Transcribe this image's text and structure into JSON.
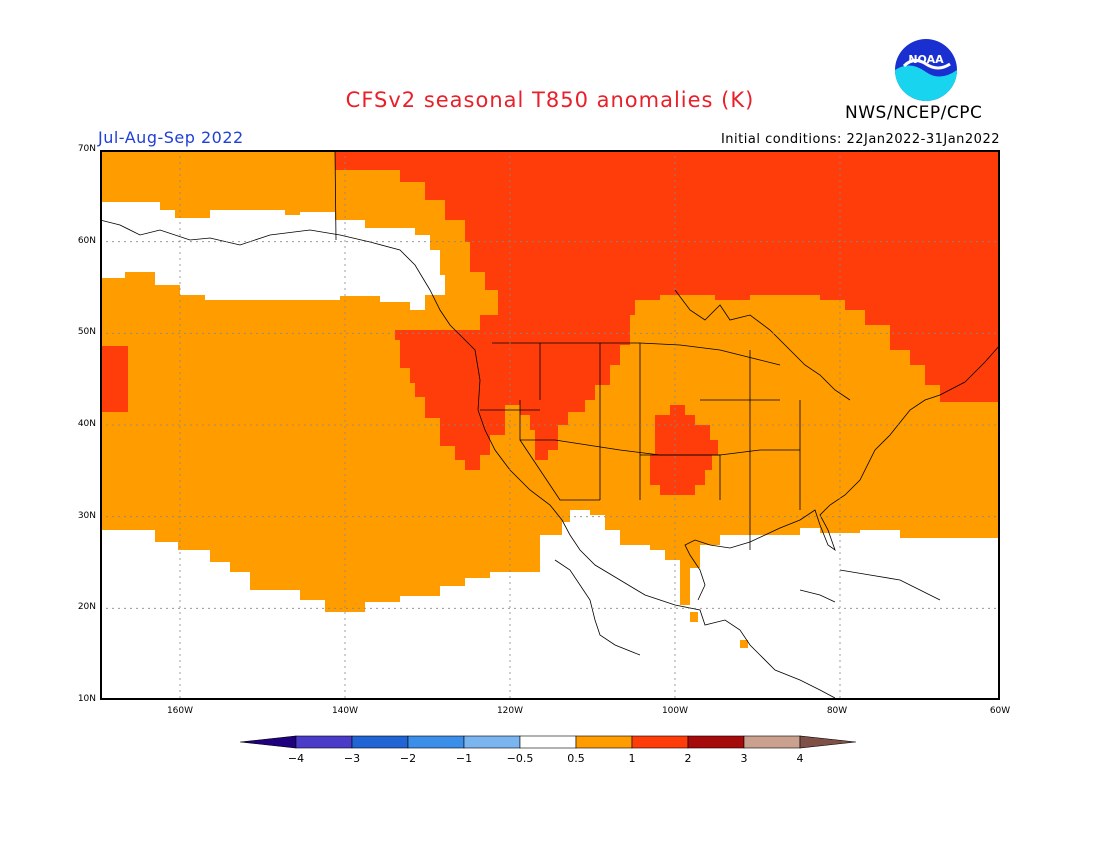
{
  "title": "CFSv2 seasonal T850 anomalies (K)",
  "season": "Jul-Aug-Sep 2022",
  "initial_conditions": "Initial conditions: 22Jan2022-31Jan2022",
  "agency": "NWS/NCEP/CPC",
  "logo_text": "NOAA",
  "lat_labels": [
    "70N",
    "60N",
    "50N",
    "40N",
    "30N",
    "20N",
    "10N"
  ],
  "lon_labels": [
    "160W",
    "140W",
    "120W",
    "100W",
    "80W",
    "60W"
  ],
  "colorbar": {
    "labels": [
      "-4",
      "-3",
      "-2",
      "-1",
      "-0.5",
      "0.5",
      "1",
      "2",
      "3",
      "4"
    ],
    "colors": [
      "#1f007f",
      "#4a3cc9",
      "#2165d4",
      "#3c8fe8",
      "#7bb5ef",
      "#ffffff",
      "#ff9d00",
      "#ff3d0b",
      "#a50b0b",
      "#caa08f",
      "#7f5046"
    ]
  },
  "colors": {
    "anomaly_0_5_1": "#ff9d00",
    "anomaly_1_2": "#ff3d0b",
    "anomaly_neutral": "#ffffff"
  }
}
